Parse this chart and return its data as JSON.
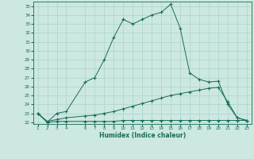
{
  "xlabel": "Humidex (Indice chaleur)",
  "bg_color": "#cce8e0",
  "line_color": "#1a6b5a",
  "grid_color": "#aad4cc",
  "xlim": [
    0.5,
    23.5
  ],
  "ylim": [
    21.8,
    35.5
  ],
  "xticks": [
    1,
    2,
    3,
    4,
    6,
    7,
    8,
    9,
    10,
    11,
    12,
    13,
    14,
    15,
    16,
    17,
    18,
    19,
    20,
    21,
    22,
    23
  ],
  "yticks": [
    22,
    23,
    24,
    25,
    26,
    27,
    28,
    29,
    30,
    31,
    32,
    33,
    34,
    35
  ],
  "series1_x": [
    1,
    2,
    3,
    4,
    6,
    7,
    8,
    9,
    10,
    11,
    12,
    13,
    14,
    15,
    16,
    17,
    18,
    19,
    20,
    21,
    22,
    23
  ],
  "series1_y": [
    23.0,
    22.0,
    23.0,
    23.2,
    26.5,
    27.0,
    29.0,
    31.5,
    33.5,
    33.0,
    33.5,
    34.0,
    34.3,
    35.2,
    32.5,
    27.5,
    26.8,
    26.5,
    26.6,
    24.0,
    22.5,
    22.2
  ],
  "series2_x": [
    1,
    2,
    3,
    4,
    6,
    7,
    8,
    9,
    10,
    11,
    12,
    13,
    14,
    15,
    16,
    17,
    18,
    19,
    20,
    21,
    22,
    23
  ],
  "series2_y": [
    23.0,
    22.1,
    22.3,
    22.5,
    22.7,
    22.8,
    23.0,
    23.2,
    23.5,
    23.8,
    24.1,
    24.4,
    24.7,
    25.0,
    25.2,
    25.4,
    25.6,
    25.8,
    25.9,
    24.3,
    22.5,
    22.2
  ],
  "series3_x": [
    1,
    2,
    3,
    4,
    6,
    7,
    8,
    9,
    10,
    11,
    12,
    13,
    14,
    15,
    16,
    17,
    18,
    19,
    20,
    21,
    22,
    23
  ],
  "series3_y": [
    23.0,
    22.0,
    22.1,
    22.1,
    22.1,
    22.1,
    22.1,
    22.1,
    22.2,
    22.2,
    22.2,
    22.2,
    22.2,
    22.2,
    22.2,
    22.2,
    22.2,
    22.2,
    22.2,
    22.2,
    22.2,
    22.2
  ]
}
